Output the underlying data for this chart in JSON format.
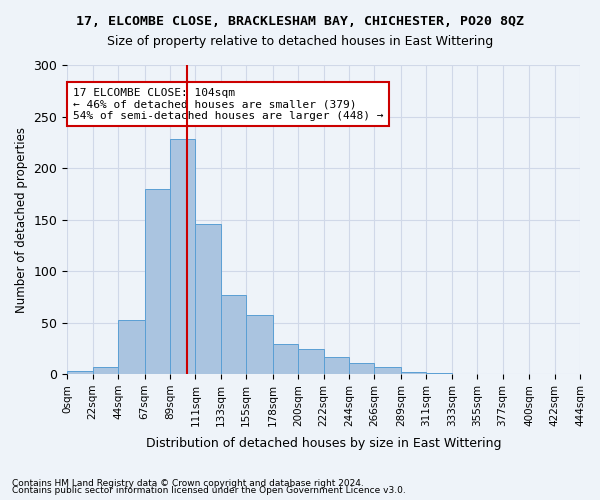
{
  "title": "17, ELCOMBE CLOSE, BRACKLESHAM BAY, CHICHESTER, PO20 8QZ",
  "subtitle": "Size of property relative to detached houses in East Wittering",
  "xlabel": "Distribution of detached houses by size in East Wittering",
  "ylabel": "Number of detached properties",
  "footnote1": "Contains HM Land Registry data © Crown copyright and database right 2024.",
  "footnote2": "Contains public sector information licensed under the Open Government Licence v3.0.",
  "annotation_line1": "17 ELCOMBE CLOSE: 104sqm",
  "annotation_line2": "← 46% of detached houses are smaller (379)",
  "annotation_line3": "54% of semi-detached houses are larger (448) →",
  "property_size": 104,
  "bin_edges": [
    0,
    22,
    44,
    67,
    89,
    111,
    133,
    155,
    178,
    200,
    222,
    244,
    266,
    289,
    311,
    333,
    355,
    377,
    400,
    422,
    444
  ],
  "bar_heights": [
    3,
    7,
    52,
    180,
    228,
    146,
    77,
    57,
    29,
    24,
    17,
    11,
    7,
    2,
    1,
    0,
    0,
    0,
    0,
    0
  ],
  "bar_color": "#aac4e0",
  "bar_edge_color": "#5a9fd4",
  "vline_color": "#cc0000",
  "vline_x": 104,
  "grid_color": "#d0d8e8",
  "bg_color": "#eef3f9",
  "ylim": [
    0,
    300
  ],
  "yticks": [
    0,
    50,
    100,
    150,
    200,
    250,
    300
  ],
  "annotation_box_color": "#ffffff",
  "annotation_box_edge": "#cc0000"
}
